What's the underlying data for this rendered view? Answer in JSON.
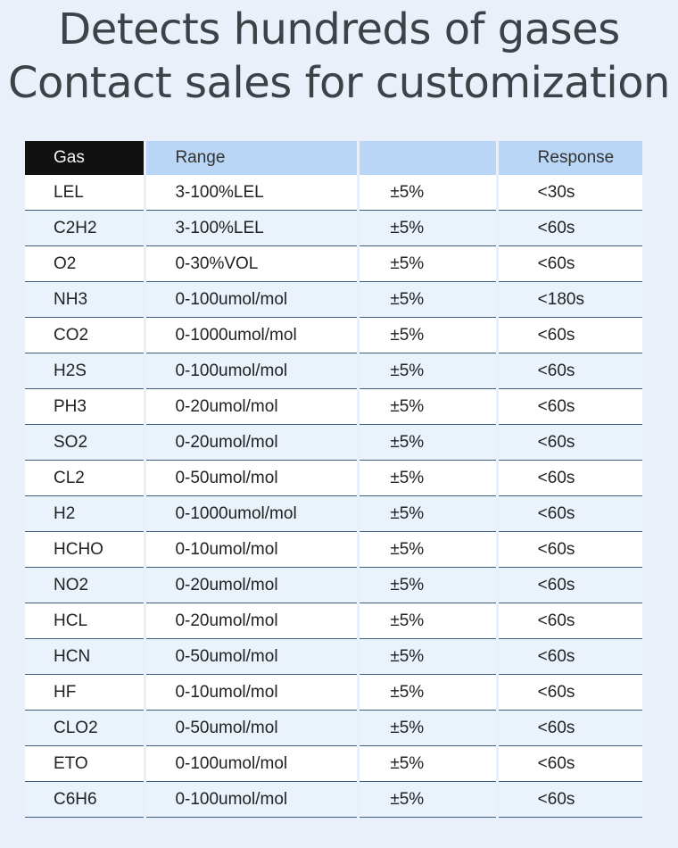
{
  "headline": {
    "line1": "Detects hundreds of gases",
    "line2": "Contact sales for customization"
  },
  "table": {
    "headers": [
      "Gas",
      "Range",
      "",
      "Response"
    ],
    "rows": [
      [
        "LEL",
        "3-100%LEL",
        "±5%",
        "<30s"
      ],
      [
        "C2H2",
        "3-100%LEL",
        "±5%",
        "<60s"
      ],
      [
        "O2",
        "0-30%VOL",
        "±5%",
        "<60s"
      ],
      [
        "NH3",
        "0-100umol/mol",
        "±5%",
        "<180s"
      ],
      [
        "CO2",
        "0-1000umol/mol",
        "±5%",
        "<60s"
      ],
      [
        "H2S",
        "0-100umol/mol",
        "±5%",
        "<60s"
      ],
      [
        "PH3",
        "0-20umol/mol",
        "±5%",
        "<60s"
      ],
      [
        "SO2",
        "0-20umol/mol",
        "±5%",
        "<60s"
      ],
      [
        "CL2",
        "0-50umol/mol",
        "±5%",
        "<60s"
      ],
      [
        "H2",
        "0-1000umol/mol",
        "±5%",
        "<60s"
      ],
      [
        "HCHO",
        "0-10umol/mol",
        "±5%",
        "<60s"
      ],
      [
        "NO2",
        "0-20umol/mol",
        "±5%",
        "<60s"
      ],
      [
        "HCL",
        "0-20umol/mol",
        "±5%",
        "<60s"
      ],
      [
        "HCN",
        "0-50umol/mol",
        "±5%",
        "<60s"
      ],
      [
        "HF",
        "0-10umol/mol",
        "±5%",
        "<60s"
      ],
      [
        "CLO2",
        "0-50umol/mol",
        "±5%",
        "<60s"
      ],
      [
        "ETO",
        "0-100umol/mol",
        "±5%",
        "<60s"
      ],
      [
        "C6H6",
        "0-100umol/mol",
        "±5%",
        "<60s"
      ]
    ]
  }
}
